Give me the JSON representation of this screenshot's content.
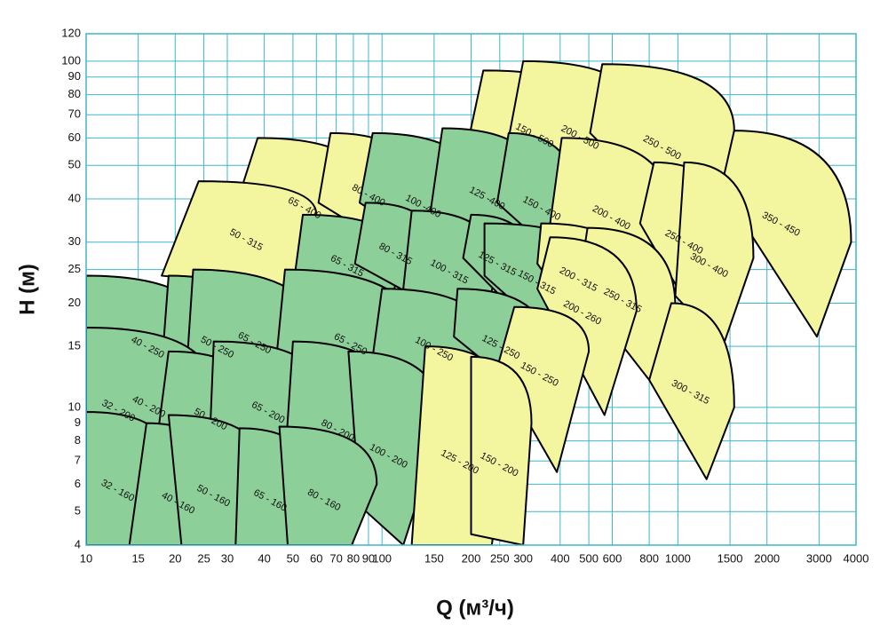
{
  "chart_data": {
    "type": "region",
    "x_label": "Q (м³/ч)",
    "y_label": "H (м)",
    "log_x": true,
    "log_y": true,
    "grid": true,
    "grid_color": "#3fb6cc",
    "xlim": [
      10,
      4000
    ],
    "ylim": [
      4,
      120
    ],
    "xticks": [
      10,
      15,
      20,
      25,
      30,
      40,
      50,
      60,
      70,
      80,
      90,
      100,
      150,
      200,
      250,
      300,
      400,
      500,
      600,
      800,
      1000,
      1500,
      2000,
      3000,
      4000
    ],
    "yticks": [
      4,
      5,
      6,
      7,
      8,
      9,
      10,
      15,
      20,
      25,
      30,
      40,
      50,
      60,
      70,
      80,
      90,
      100,
      120
    ],
    "regions": [
      {
        "label": "150 - 500",
        "color": "#f4f59f",
        "points": [
          [
            195,
            58
          ],
          [
            220,
            94
          ],
          [
            540,
            70
          ],
          [
            495,
            36
          ]
        ]
      },
      {
        "label": "200 - 500",
        "color": "#f4f59f",
        "points": [
          [
            270,
            62
          ],
          [
            300,
            100
          ],
          [
            800,
            62
          ],
          [
            730,
            34
          ]
        ]
      },
      {
        "label": "250 - 500",
        "color": "#f4f59f",
        "points": [
          [
            505,
            62
          ],
          [
            555,
            98
          ],
          [
            1550,
            63
          ],
          [
            1400,
            26
          ]
        ]
      },
      {
        "label": "350 - 450",
        "color": "#f4f59f",
        "points": [
          [
            1400,
            43
          ],
          [
            1550,
            63
          ],
          [
            3850,
            30
          ],
          [
            2950,
            16
          ]
        ]
      },
      {
        "label": "65 - 400",
        "color": "#f4f59f",
        "points": [
          [
            30,
            32
          ],
          [
            38,
            60
          ],
          [
            93,
            40
          ],
          [
            84,
            26
          ]
        ]
      },
      {
        "label": "80 - 400",
        "color": "#f4f59f",
        "points": [
          [
            61,
            39
          ],
          [
            67,
            62
          ],
          [
            130,
            43
          ],
          [
            123,
            27
          ]
        ]
      },
      {
        "label": "100 -400",
        "color": "#8ccf98",
        "points": [
          [
            84,
            39
          ],
          [
            93,
            62
          ],
          [
            230,
            36
          ],
          [
            200,
            24
          ]
        ]
      },
      {
        "label": "125 -400",
        "color": "#8ccf98",
        "points": [
          [
            146,
            37
          ],
          [
            160,
            64
          ],
          [
            345,
            42
          ],
          [
            325,
            26
          ]
        ]
      },
      {
        "label": "150 - 400",
        "color": "#8ccf98",
        "points": [
          [
            245,
            39
          ],
          [
            268,
            62
          ],
          [
            475,
            34
          ],
          [
            460,
            24
          ]
        ]
      },
      {
        "label": "200 - 400",
        "color": "#f4f59f",
        "points": [
          [
            370,
            34
          ],
          [
            405,
            60
          ],
          [
            950,
            36
          ],
          [
            880,
            21
          ]
        ]
      },
      {
        "label": "250 - 400",
        "color": "#f4f59f",
        "points": [
          [
            745,
            34
          ],
          [
            830,
            51
          ],
          [
            1500,
            31
          ],
          [
            1300,
            15
          ]
        ]
      },
      {
        "label": "300 - 400",
        "color": "#f4f59f",
        "points": [
          [
            980,
            21
          ],
          [
            1050,
            51
          ],
          [
            1800,
            27
          ],
          [
            1420,
            15
          ]
        ]
      },
      {
        "label": "50 - 315",
        "color": "#f4f59f",
        "points": [
          [
            18,
            24
          ],
          [
            24,
            45
          ],
          [
            60,
            36
          ],
          [
            56,
            22
          ]
        ]
      },
      {
        "label": "65 - 315",
        "color": "#8ccf98",
        "points": [
          [
            50,
            22
          ],
          [
            54,
            36
          ],
          [
            115,
            27
          ],
          [
            108,
            20
          ]
        ]
      },
      {
        "label": "80 - 315",
        "color": "#8ccf98",
        "points": [
          [
            81,
            26
          ],
          [
            88,
            39
          ],
          [
            150,
            29
          ],
          [
            142,
            20
          ]
        ]
      },
      {
        "label": "100 - 315",
        "color": "#8ccf98",
        "points": [
          [
            118,
            22
          ],
          [
            126,
            37
          ],
          [
            245,
            25
          ],
          [
            222,
            18
          ]
        ]
      },
      {
        "label": "125 - 315",
        "color": "#8ccf98",
        "points": [
          [
            188,
            27
          ],
          [
            200,
            36
          ],
          [
            320,
            26
          ],
          [
            300,
            18
          ]
        ]
      },
      {
        "label": "150 - 315",
        "color": "#8ccf98",
        "points": [
          [
            222,
            24
          ],
          [
            222,
            34
          ],
          [
            505,
            26
          ],
          [
            495,
            13
          ]
        ]
      },
      {
        "label": "200 - 315",
        "color": "#f4f59f",
        "points": [
          [
            335,
            26
          ],
          [
            345,
            34
          ],
          [
            650,
            26
          ],
          [
            600,
            13
          ]
        ]
      },
      {
        "label": "250 - 315",
        "color": "#f4f59f",
        "points": [
          [
            460,
            22
          ],
          [
            495,
            33
          ],
          [
            980,
            19.5
          ],
          [
            800,
            12
          ]
        ]
      },
      {
        "label": "200 - 260",
        "color": "#f4f59f",
        "points": [
          [
            335,
            22
          ],
          [
            370,
            31
          ],
          [
            725,
            19
          ],
          [
            565,
            9.5
          ]
        ]
      },
      {
        "label": "300 - 315",
        "color": "#f4f59f",
        "points": [
          [
            800,
            12
          ],
          [
            950,
            20
          ],
          [
            1550,
            10
          ],
          [
            1250,
            6.2
          ]
        ]
      },
      {
        "label": "40 - 250",
        "color": "#8ccf98",
        "points": [
          [
            10,
            13
          ],
          [
            10,
            24
          ],
          [
            27,
            15
          ],
          [
            25,
            10.5
          ]
        ]
      },
      {
        "label": "50 - 250",
        "color": "#8ccf98",
        "points": [
          [
            18,
            13
          ],
          [
            19,
            24
          ],
          [
            42,
            15
          ],
          [
            41,
            10.5
          ]
        ]
      },
      {
        "label": "65 - 250",
        "color": "#8ccf98",
        "points": [
          [
            22,
            14
          ],
          [
            23,
            25
          ],
          [
            62,
            15
          ],
          [
            60,
            10.5
          ]
        ]
      },
      {
        "label": "65 - 250",
        "color": "#8ccf98",
        "points": [
          [
            44,
            14
          ],
          [
            47,
            25
          ],
          [
            138,
            14.5
          ],
          [
            131,
            10.5
          ]
        ]
      },
      {
        "label": "100 - 250",
        "color": "#8ccf98",
        "points": [
          [
            93,
            14
          ],
          [
            100,
            22
          ],
          [
            235,
            14.5
          ],
          [
            230,
            10.5
          ]
        ]
      },
      {
        "label": "125 - 250",
        "color": "#8ccf98",
        "points": [
          [
            175,
            16
          ],
          [
            180,
            22
          ],
          [
            370,
            14
          ],
          [
            345,
            10
          ]
        ]
      },
      {
        "label": "150 - 250",
        "color": "#f4f59f",
        "points": [
          [
            245,
            13
          ],
          [
            280,
            19.5
          ],
          [
            500,
            14.5
          ],
          [
            390,
            6.5
          ]
        ]
      },
      {
        "label": "32 - 200",
        "color": "#8ccf98",
        "points": [
          [
            10,
            6.5
          ],
          [
            10,
            15.5
          ],
          [
            17,
            10
          ],
          [
            16,
            9
          ]
        ]
      },
      {
        "label": "40 - 200",
        "color": "#8ccf98",
        "points": [
          [
            10,
            6
          ],
          [
            10,
            17
          ],
          [
            27,
            11
          ],
          [
            26,
            9
          ]
        ]
      },
      {
        "label": "50 - 200",
        "color": "#8ccf98",
        "points": [
          [
            17,
            7
          ],
          [
            19,
            14.5
          ],
          [
            39,
            9.5
          ],
          [
            38,
            7.5
          ]
        ]
      },
      {
        "label": "65 - 200",
        "color": "#8ccf98",
        "points": [
          [
            26,
            7
          ],
          [
            27,
            15.5
          ],
          [
            66,
            10
          ],
          [
            62,
            8
          ]
        ]
      },
      {
        "label": "80 - 200",
        "color": "#8ccf98",
        "points": [
          [
            47,
            7
          ],
          [
            50,
            15.5
          ],
          [
            115,
            9
          ],
          [
            93,
            5.5
          ]
        ]
      },
      {
        "label": "100 - 200",
        "color": "#8ccf98",
        "points": [
          [
            84,
            5.2
          ],
          [
            77,
            14.5
          ],
          [
            160,
            9
          ],
          [
            118,
            4
          ]
        ]
      },
      {
        "label": "125 - 200",
        "color": "#f4f59f",
        "points": [
          [
            126,
            4
          ],
          [
            140,
            15
          ],
          [
            270,
            9.7
          ],
          [
            235,
            4
          ]
        ]
      },
      {
        "label": "150 - 200",
        "color": "#f4f59f",
        "points": [
          [
            200,
            4.3
          ],
          [
            200,
            14
          ],
          [
            320,
            9
          ],
          [
            300,
            4
          ]
        ]
      },
      {
        "label": "32 - 160",
        "color": "#8ccf98",
        "points": [
          [
            10,
            4
          ],
          [
            10,
            9.7
          ],
          [
            19,
            7
          ],
          [
            14,
            4
          ]
        ]
      },
      {
        "label": "40 - 160",
        "color": "#8ccf98",
        "points": [
          [
            14,
            4
          ],
          [
            16,
            9
          ],
          [
            30,
            5.4
          ],
          [
            26,
            4
          ]
        ]
      },
      {
        "label": "50 - 160",
        "color": "#8ccf98",
        "points": [
          [
            21,
            4
          ],
          [
            19,
            9.5
          ],
          [
            41,
            6.2
          ],
          [
            32,
            4
          ]
        ]
      },
      {
        "label": "65 - 160",
        "color": "#8ccf98",
        "points": [
          [
            32,
            4
          ],
          [
            33,
            8.7
          ],
          [
            58,
            6
          ],
          [
            50,
            4
          ]
        ]
      },
      {
        "label": "80 - 160",
        "color": "#8ccf98",
        "points": [
          [
            48,
            4
          ],
          [
            45,
            8.8
          ],
          [
            96,
            6
          ],
          [
            79,
            4
          ]
        ]
      }
    ]
  }
}
